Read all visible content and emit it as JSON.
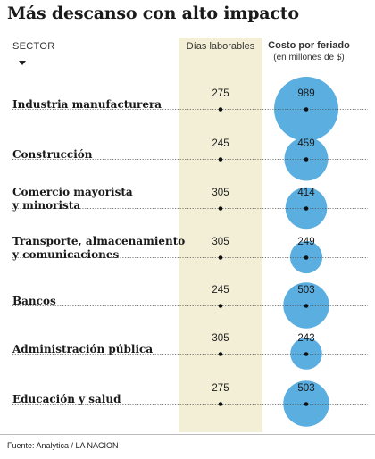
{
  "title": "Más descanso con alto impacto",
  "headers": {
    "sector": "SECTOR",
    "days": "Días laborables",
    "cost": "Costo por feriado",
    "cost_unit": "(en millones de $)"
  },
  "source": "Fuente: Analytica / LA NACION",
  "colors": {
    "bubble": "#5aaee0",
    "band": "#f3efd7"
  },
  "chart_data": {
    "type": "table",
    "series": [
      {
        "name": "Días laborables",
        "values": [
          275,
          245,
          305,
          305,
          245,
          305,
          275
        ]
      },
      {
        "name": "Costo por feriado",
        "values": [
          989,
          459,
          414,
          249,
          503,
          243,
          503
        ]
      }
    ],
    "rows": [
      {
        "sector": [
          "Industria manufacturera"
        ],
        "days": "275",
        "cost": "989",
        "cost_value": 989
      },
      {
        "sector": [
          "Construcción"
        ],
        "days": "245",
        "cost": "459",
        "cost_value": 459
      },
      {
        "sector": [
          "Comercio mayorista",
          "y minorista"
        ],
        "days": "305",
        "cost": "414",
        "cost_value": 414
      },
      {
        "sector": [
          "Transporte, almacenamiento",
          "y comunicaciones"
        ],
        "days": "305",
        "cost": "249",
        "cost_value": 249
      },
      {
        "sector": [
          "Bancos"
        ],
        "days": "245",
        "cost": "503",
        "cost_value": 503
      },
      {
        "sector": [
          "Administración pública"
        ],
        "days": "305",
        "cost": "243",
        "cost_value": 243
      },
      {
        "sector": [
          "Educación y salud"
        ],
        "days": "275",
        "cost": "503",
        "cost_value": 503
      }
    ]
  }
}
